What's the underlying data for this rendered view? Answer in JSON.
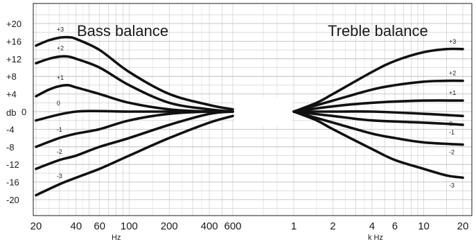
{
  "chart_data": [
    {
      "type": "line",
      "title": "Bass balance",
      "xlabel": "Hz",
      "ylabel": "db",
      "x_scale": "log",
      "xlim": [
        20,
        600
      ],
      "ylim": [
        -20,
        20
      ],
      "x_ticks": [
        20,
        40,
        60,
        100,
        200,
        400,
        600
      ],
      "x_tick_labels": [
        "20",
        "40",
        "60",
        "100",
        "200",
        "400",
        "600"
      ],
      "y_ticks": [
        20,
        16,
        12,
        8,
        4,
        0,
        -4,
        -8,
        -12,
        -16,
        -20
      ],
      "y_tick_labels": [
        "+20",
        "+16",
        "+12",
        "+8",
        "+4",
        "0",
        "-4",
        "-8",
        "-12",
        "-16",
        "-20"
      ],
      "grid": true,
      "series": [
        {
          "name": "+3",
          "x": [
            20,
            25,
            30,
            35,
            40,
            60,
            100,
            200,
            400,
            600
          ],
          "y": [
            15,
            16.2,
            16.8,
            16.9,
            16.5,
            14,
            9,
            4,
            1.5,
            0.5
          ]
        },
        {
          "name": "+2",
          "x": [
            20,
            25,
            30,
            35,
            40,
            60,
            100,
            200,
            400,
            600
          ],
          "y": [
            11,
            12,
            12.5,
            12.5,
            12,
            10,
            6,
            2,
            0.5,
            0
          ]
        },
        {
          "name": "+1",
          "x": [
            20,
            25,
            30,
            35,
            40,
            60,
            100,
            200,
            400,
            600
          ],
          "y": [
            3.5,
            5,
            5.8,
            6,
            5.5,
            4,
            2,
            0.5,
            0,
            0
          ]
        },
        {
          "name": "0",
          "x": [
            20,
            40,
            100,
            200,
            400,
            600
          ],
          "y": [
            -2,
            0,
            0,
            0,
            0,
            0
          ]
        },
        {
          "name": "-1",
          "x": [
            20,
            30,
            40,
            60,
            100,
            200,
            400,
            600
          ],
          "y": [
            -8,
            -6,
            -5,
            -4,
            -2,
            -0.5,
            0,
            0
          ]
        },
        {
          "name": "-2",
          "x": [
            20,
            30,
            40,
            60,
            100,
            200,
            400,
            600
          ],
          "y": [
            -13,
            -11,
            -10,
            -8,
            -6,
            -3,
            -0.5,
            0
          ]
        },
        {
          "name": "-3",
          "x": [
            20,
            30,
            40,
            60,
            100,
            200,
            400,
            600
          ],
          "y": [
            -19,
            -16.5,
            -15,
            -13,
            -10,
            -6,
            -2.5,
            -1
          ]
        }
      ],
      "curve_labels": [
        "+3",
        "+2",
        "+1",
        "0",
        "-1",
        "-2",
        "-3"
      ]
    },
    {
      "type": "line",
      "title": "Treble balance",
      "xlabel": "k Hz",
      "ylabel": "",
      "x_scale": "log",
      "xlim": [
        1,
        20
      ],
      "ylim": [
        -20,
        20
      ],
      "x_ticks": [
        1,
        2,
        4,
        6,
        10,
        20
      ],
      "x_tick_labels": [
        "1",
        "2",
        "4",
        "6",
        "10",
        "20"
      ],
      "grid": true,
      "series": [
        {
          "name": "+3",
          "x": [
            1,
            1.5,
            2,
            4,
            6,
            10,
            15,
            20
          ],
          "y": [
            0,
            2,
            4,
            9,
            11.5,
            13.5,
            14.2,
            14.2
          ]
        },
        {
          "name": "+2",
          "x": [
            1,
            2,
            4,
            6,
            10,
            15,
            20
          ],
          "y": [
            0,
            2.5,
            5,
            6,
            6.8,
            7,
            7
          ]
        },
        {
          "name": "+1",
          "x": [
            1,
            2,
            4,
            10,
            20
          ],
          "y": [
            0,
            1.2,
            2,
            2.5,
            2.5
          ]
        },
        {
          "name": "0",
          "x": [
            1,
            2,
            4,
            10,
            20
          ],
          "y": [
            0,
            0,
            0,
            -0.5,
            -1
          ]
        },
        {
          "name": "-1",
          "x": [
            1,
            2,
            4,
            10,
            20
          ],
          "y": [
            0,
            -1,
            -2,
            -2.5,
            -3
          ]
        },
        {
          "name": "-2",
          "x": [
            1,
            2,
            4,
            6,
            10,
            20
          ],
          "y": [
            0,
            -2.5,
            -5,
            -6,
            -7,
            -7.5
          ]
        },
        {
          "name": "-3",
          "x": [
            1,
            1.5,
            2,
            4,
            6,
            10,
            15,
            20
          ],
          "y": [
            0,
            -2,
            -4,
            -8.5,
            -11,
            -13,
            -14.5,
            -15
          ]
        }
      ],
      "curve_labels": [
        "+3",
        "+2",
        "+1",
        "0",
        "-1",
        "-2",
        "-3"
      ]
    }
  ]
}
